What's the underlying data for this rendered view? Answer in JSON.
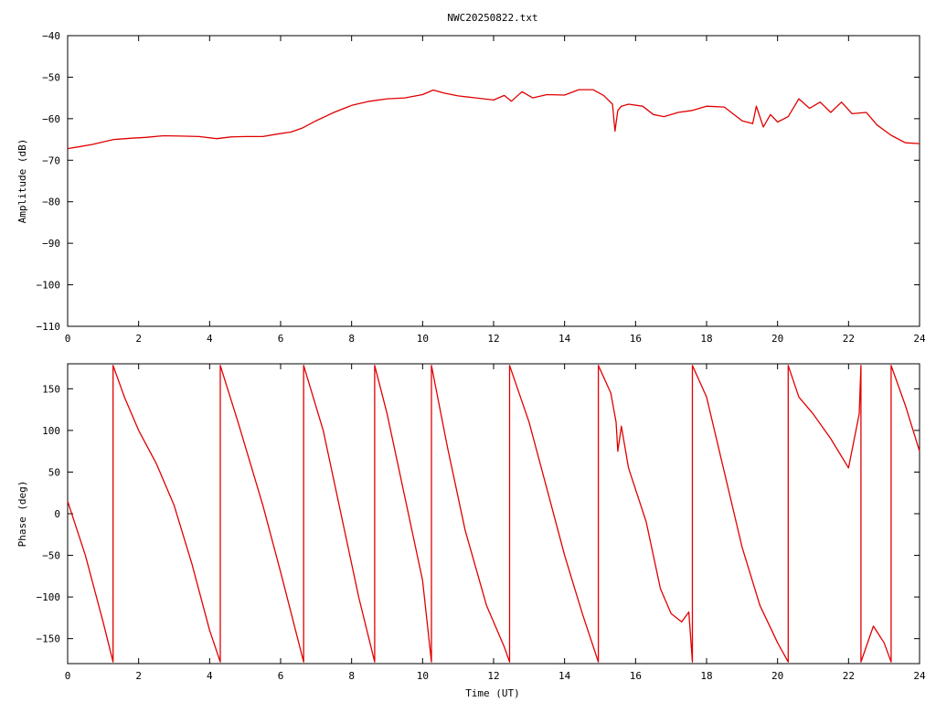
{
  "title": "NWC20250822.txt",
  "colors": {
    "series": "#e00000",
    "axes": "#000000",
    "background": "#ffffff"
  },
  "chart_data": [
    {
      "type": "line",
      "title": "NWC20250822.txt",
      "ylabel": "Amplitude (dB)",
      "xlabel": "",
      "xlim": [
        0,
        24
      ],
      "ylim": [
        -110,
        -40
      ],
      "xticks": [
        0,
        2,
        4,
        6,
        8,
        10,
        12,
        14,
        16,
        18,
        20,
        22,
        24
      ],
      "yticks": [
        -110,
        -100,
        -90,
        -80,
        -70,
        -60,
        -50,
        -40
      ],
      "grid": false,
      "series": [
        {
          "color": "#e00000",
          "x": [
            0,
            0.3,
            0.7,
            1.0,
            1.3,
            1.8,
            2.2,
            2.7,
            3.2,
            3.7,
            4.2,
            4.6,
            5.0,
            5.5,
            5.9,
            6.3,
            6.6,
            7.0,
            7.5,
            8.0,
            8.5,
            9.0,
            9.5,
            10.0,
            10.3,
            10.6,
            11.0,
            11.5,
            12.0,
            12.3,
            12.5,
            12.8,
            13.1,
            13.5,
            14.0,
            14.4,
            14.8,
            15.1,
            15.35,
            15.42,
            15.5,
            15.6,
            15.8,
            16.2,
            16.5,
            16.8,
            17.2,
            17.6,
            18.0,
            18.5,
            19.0,
            19.3,
            19.4,
            19.6,
            19.8,
            20.0,
            20.3,
            20.6,
            20.9,
            21.2,
            21.5,
            21.8,
            22.1,
            22.5,
            22.8,
            23.2,
            23.6,
            24.0
          ],
          "y": [
            -67.2,
            -66.8,
            -66.2,
            -65.6,
            -65.0,
            -64.7,
            -64.5,
            -64.1,
            -64.2,
            -64.3,
            -64.8,
            -64.4,
            -64.3,
            -64.3,
            -63.7,
            -63.2,
            -62.3,
            -60.5,
            -58.5,
            -56.8,
            -55.8,
            -55.2,
            -55.0,
            -54.2,
            -53.1,
            -53.8,
            -54.5,
            -55.0,
            -55.5,
            -54.4,
            -55.8,
            -53.5,
            -55.0,
            -54.2,
            -54.3,
            -53.0,
            -53.0,
            -54.4,
            -56.5,
            -63.0,
            -58.0,
            -57.0,
            -56.5,
            -57.0,
            -59.0,
            -59.5,
            -58.5,
            -58.0,
            -57.0,
            -57.2,
            -60.5,
            -61.2,
            -57.0,
            -62.0,
            -59.0,
            -60.8,
            -59.5,
            -55.2,
            -57.5,
            -56.0,
            -58.5,
            -56.0,
            -58.8,
            -58.5,
            -61.5,
            -64.0,
            -65.8,
            -66.0
          ]
        }
      ]
    },
    {
      "type": "line",
      "title": "",
      "ylabel": "Phase (deg)",
      "xlabel": "Time (UT)",
      "xlim": [
        0,
        24
      ],
      "ylim": [
        -180,
        180
      ],
      "xticks": [
        0,
        2,
        4,
        6,
        8,
        10,
        12,
        14,
        16,
        18,
        20,
        22,
        24
      ],
      "yticks": [
        -150,
        -100,
        -50,
        0,
        50,
        100,
        150
      ],
      "grid": false,
      "series": [
        {
          "color": "#e00000",
          "x": [
            0,
            0.5,
            1.0,
            1.28,
            1.28,
            1.6,
            2.0,
            2.5,
            3.0,
            3.5,
            4.0,
            4.3,
            4.3,
            4.8,
            5.5,
            6.0,
            6.65,
            6.65,
            7.2,
            7.8,
            8.2,
            8.65,
            8.65,
            9.0,
            9.5,
            10.0,
            10.25,
            10.25,
            10.7,
            11.2,
            11.8,
            12.3,
            12.45,
            12.45,
            13.0,
            13.5,
            14.0,
            14.5,
            14.95,
            14.95,
            15.3,
            15.45,
            15.5,
            15.6,
            15.8,
            16.3,
            16.7,
            17.0,
            17.3,
            17.5,
            17.6,
            17.6,
            18.0,
            18.5,
            19.0,
            19.5,
            20.0,
            20.3,
            20.3,
            20.6,
            21.0,
            21.5,
            22.0,
            22.3,
            22.35,
            22.35,
            22.7,
            23.0,
            23.2,
            23.2,
            23.6,
            24.0
          ],
          "y": [
            15,
            -50,
            -130,
            -178,
            178,
            140,
            100,
            60,
            10,
            -60,
            -140,
            -178,
            178,
            110,
            10,
            -70,
            -178,
            178,
            100,
            -20,
            -100,
            -178,
            178,
            120,
            20,
            -80,
            -178,
            178,
            80,
            -20,
            -110,
            -160,
            -178,
            178,
            110,
            30,
            -50,
            -120,
            -178,
            178,
            145,
            110,
            75,
            105,
            55,
            -10,
            -90,
            -120,
            -130,
            -118,
            -178,
            178,
            140,
            50,
            -40,
            -110,
            -155,
            -178,
            178,
            140,
            120,
            90,
            55,
            120,
            178,
            -178,
            -135,
            -155,
            -178,
            178,
            130,
            75
          ]
        }
      ]
    }
  ]
}
